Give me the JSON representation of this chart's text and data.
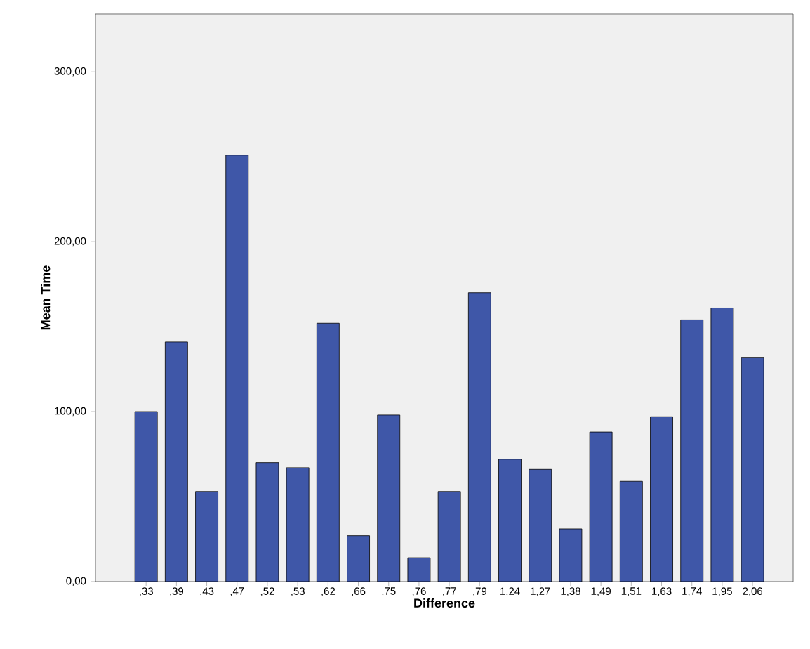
{
  "chart_data": {
    "type": "bar",
    "xlabel": "Difference",
    "ylabel": "Mean Time",
    "categories": [
      ",33",
      ",39",
      ",43",
      ",47",
      ",52",
      ",53",
      ",62",
      ",66",
      ",75",
      ",76",
      ",77",
      ",79",
      "1,24",
      "1,27",
      "1,38",
      "1,49",
      "1,51",
      "1,63",
      "1,74",
      "1,95",
      "2,06"
    ],
    "values": [
      100,
      141,
      53,
      251,
      70,
      67,
      152,
      27,
      98,
      14,
      53,
      170,
      72,
      66,
      31,
      88,
      59,
      97,
      154,
      161,
      132
    ],
    "color": "#3f57a8",
    "ylim": [
      0,
      334
    ],
    "yticks": [
      {
        "value": 0,
        "label": "0,00"
      },
      {
        "value": 100,
        "label": "100,00"
      },
      {
        "value": 200,
        "label": "200,00"
      },
      {
        "value": 300,
        "label": "300,00"
      }
    ]
  }
}
